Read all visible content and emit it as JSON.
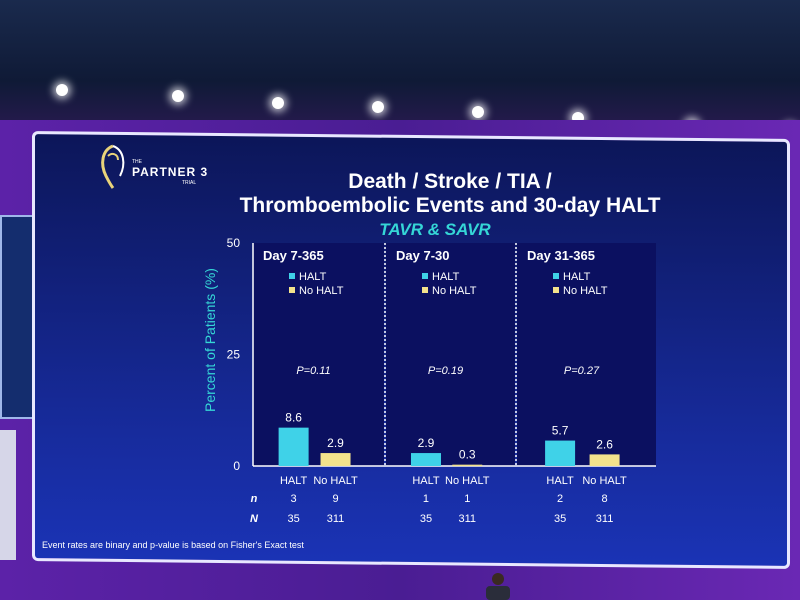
{
  "slide": {
    "logo": {
      "line1": "THE",
      "line2": "PARTNER 3",
      "line3": "TRIAL"
    },
    "title_line1": "Death / Stroke / TIA /",
    "title_line2": "Thromboembolic Events and 30-day HALT",
    "subtitle": "TAVR & SAVR",
    "footnote": "Event rates are binary and p-value is based on Fisher's Exact test"
  },
  "colors": {
    "halt": "#3fd2e8",
    "no_halt": "#f3e38c",
    "panel": "#0b1060",
    "slide_bg": "#172b9c",
    "wall": "#4a1d93",
    "title_accent": "#35d6d6"
  },
  "chart_data": {
    "type": "bar",
    "ylabel": "Percent of Patients (%)",
    "ylim": [
      0,
      50
    ],
    "y_ticks": [
      "0",
      "25",
      "50"
    ],
    "legend": {
      "halt": "HALT",
      "no_halt": "No HALT",
      "placement": "top-left of each panel"
    },
    "row_label_n": "n",
    "row_label_N": "N",
    "panels": [
      {
        "title": "Day 7-365",
        "p_value": "P=0.11",
        "bars": [
          {
            "category": "HALT",
            "value": 8.6,
            "label": "8.6",
            "n": "3",
            "N": "35"
          },
          {
            "category": "No HALT",
            "value": 2.9,
            "label": "2.9",
            "n": "9",
            "N": "311"
          }
        ]
      },
      {
        "title": "Day 7-30",
        "p_value": "P=0.19",
        "bars": [
          {
            "category": "HALT",
            "value": 2.9,
            "label": "2.9",
            "n": "1",
            "N": "35"
          },
          {
            "category": "No HALT",
            "value": 0.3,
            "label": "0.3",
            "n": "1",
            "N": "311"
          }
        ]
      },
      {
        "title": "Day 31-365",
        "p_value": "P=0.27",
        "bars": [
          {
            "category": "HALT",
            "value": 5.7,
            "label": "5.7",
            "n": "2",
            "N": "35"
          },
          {
            "category": "No HALT",
            "value": 2.6,
            "label": "2.6",
            "n": "8",
            "N": "311"
          }
        ]
      }
    ]
  }
}
